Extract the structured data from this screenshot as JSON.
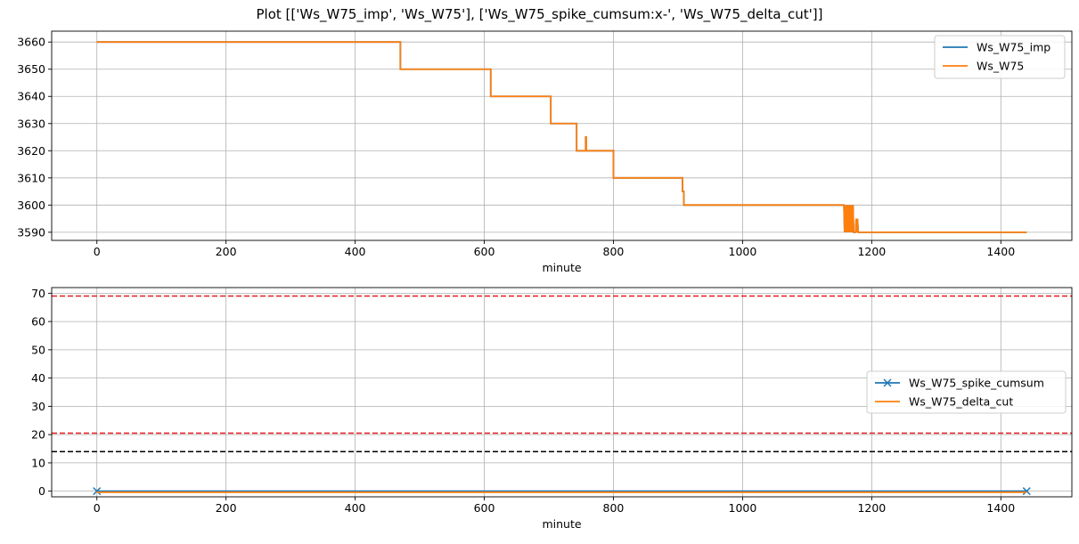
{
  "figure": {
    "title": "Plot [['Ws_W75_imp', 'Ws_W75'], ['Ws_W75_spike_cumsum:x-', 'Ws_W75_delta_cut']]"
  },
  "chart_data": [
    {
      "type": "line",
      "xlabel": "minute",
      "ylabel": "",
      "xlim": [
        -70,
        1510
      ],
      "ylim": [
        3587,
        3664
      ],
      "xticks": [
        0,
        200,
        400,
        600,
        800,
        1000,
        1200,
        1400
      ],
      "yticks": [
        3590,
        3600,
        3610,
        3620,
        3630,
        3640,
        3650,
        3660
      ],
      "grid": true,
      "legend_position": "top-right",
      "series": [
        {
          "name": "Ws_W75_imp",
          "color": "#1f77b4",
          "x": [
            0,
            470,
            470,
            610,
            610,
            703,
            703,
            743,
            743,
            757,
            757,
            758,
            758,
            800,
            800,
            907,
            907,
            909,
            909,
            1157,
            1158,
            1159,
            1160,
            1161,
            1162,
            1163,
            1164,
            1165,
            1166,
            1167,
            1168,
            1169,
            1170,
            1171,
            1172,
            1173,
            1175,
            1176,
            1177,
            1178,
            1179,
            1180,
            1440
          ],
          "values": [
            3660,
            3660,
            3650,
            3650,
            3640,
            3640,
            3630,
            3630,
            3620,
            3620,
            3625,
            3625,
            3620,
            3620,
            3610,
            3610,
            3605,
            3605,
            3600,
            3600,
            3590,
            3600,
            3590,
            3600,
            3590,
            3600,
            3590,
            3600,
            3590,
            3600,
            3590,
            3600,
            3590,
            3600,
            3590,
            3590,
            3590,
            3595,
            3590,
            3595,
            3590,
            3590,
            3590
          ]
        },
        {
          "name": "Ws_W75",
          "color": "#ff7f0e",
          "x": [
            0,
            470,
            470,
            610,
            610,
            703,
            703,
            743,
            743,
            757,
            757,
            758,
            758,
            800,
            800,
            907,
            907,
            909,
            909,
            1157,
            1158,
            1159,
            1160,
            1161,
            1162,
            1163,
            1164,
            1165,
            1166,
            1167,
            1168,
            1169,
            1170,
            1171,
            1172,
            1173,
            1175,
            1176,
            1177,
            1178,
            1179,
            1180,
            1440
          ],
          "values": [
            3660,
            3660,
            3650,
            3650,
            3640,
            3640,
            3630,
            3630,
            3620,
            3620,
            3625,
            3625,
            3620,
            3620,
            3610,
            3610,
            3605,
            3605,
            3600,
            3600,
            3590,
            3600,
            3590,
            3600,
            3590,
            3600,
            3590,
            3600,
            3590,
            3600,
            3590,
            3600,
            3590,
            3600,
            3590,
            3590,
            3590,
            3595,
            3590,
            3595,
            3590,
            3590,
            3590
          ]
        }
      ]
    },
    {
      "type": "line",
      "xlabel": "minute",
      "ylabel": "",
      "xlim": [
        -70,
        1510
      ],
      "ylim": [
        -2,
        72
      ],
      "xticks": [
        0,
        200,
        400,
        600,
        800,
        1000,
        1200,
        1400
      ],
      "yticks": [
        0,
        10,
        20,
        30,
        40,
        50,
        60,
        70
      ],
      "grid": true,
      "legend_position": "center-right",
      "series": [
        {
          "name": "Ws_W75_spike_cumsum",
          "color": "#1f77b4",
          "marker": "x",
          "x": [
            0,
            1440
          ],
          "values": [
            0,
            0
          ]
        },
        {
          "name": "Ws_W75_delta_cut",
          "color": "#ff7f0e",
          "x": [
            0,
            1440
          ],
          "values": [
            0,
            0
          ]
        }
      ],
      "hlines": [
        {
          "value": 69,
          "color": "#e41a1c",
          "style": "dashed"
        },
        {
          "value": 20.5,
          "color": "#e41a1c",
          "style": "dashed"
        },
        {
          "value": 14,
          "color": "#000000",
          "style": "dashed"
        }
      ]
    }
  ]
}
